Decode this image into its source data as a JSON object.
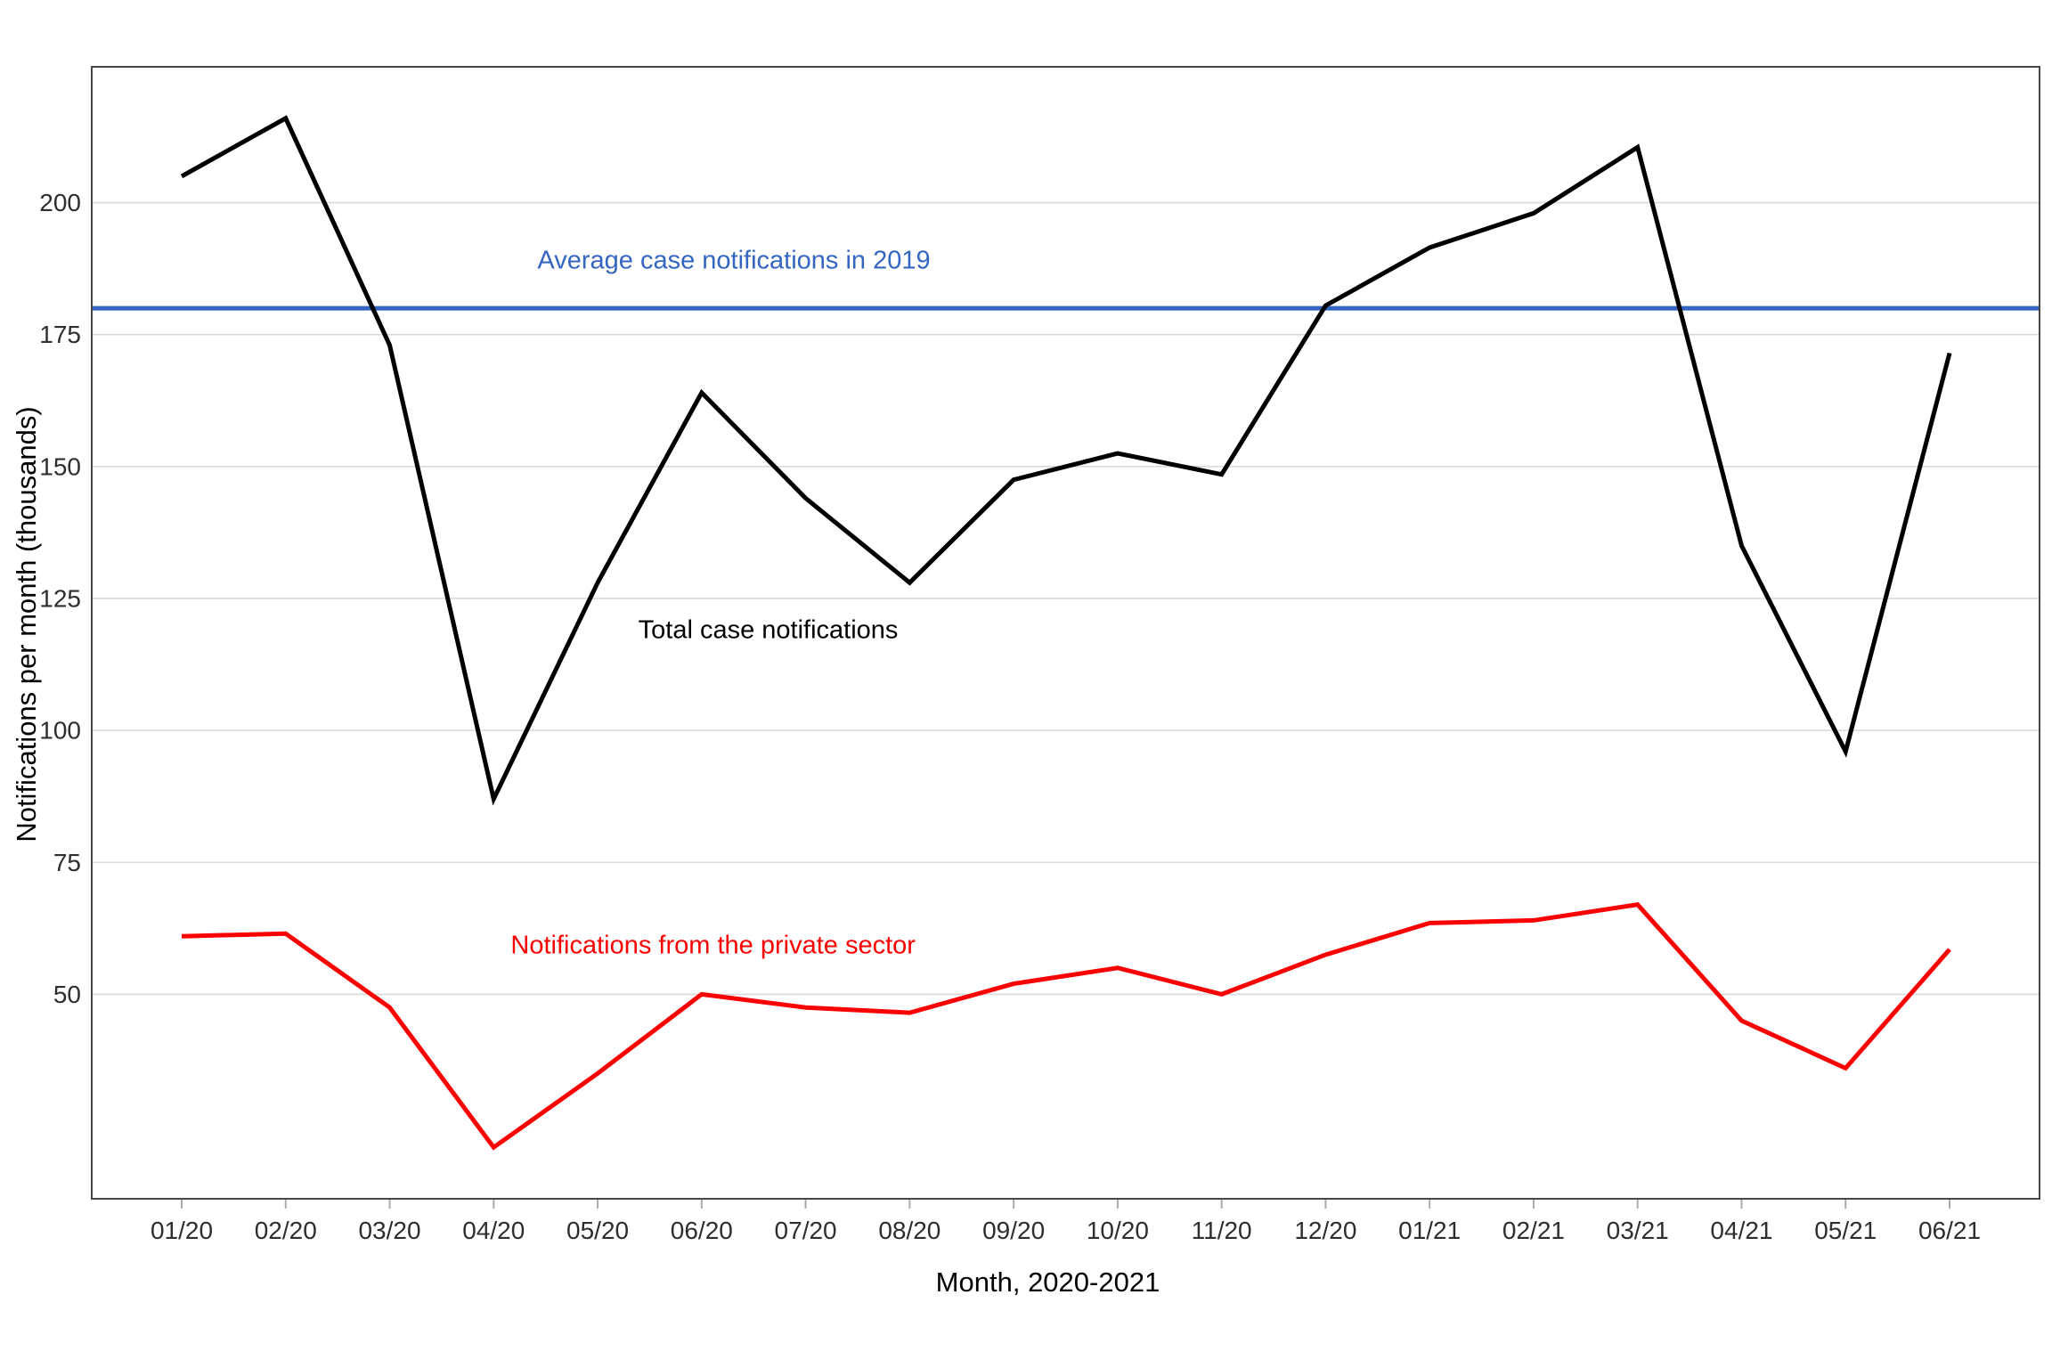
{
  "chart_data": {
    "type": "line",
    "title": "",
    "xlabel": "Month, 2020-2021",
    "ylabel": "Notifications per month (thousands)",
    "x_categories": [
      "01/20",
      "02/20",
      "03/20",
      "04/20",
      "05/20",
      "06/20",
      "07/20",
      "08/20",
      "09/20",
      "10/20",
      "11/20",
      "12/20",
      "01/21",
      "02/21",
      "03/21",
      "04/21",
      "05/21",
      "06/21"
    ],
    "yticks": [
      50,
      75,
      100,
      125,
      150,
      175,
      200
    ],
    "ylim": [
      11.25,
      225.75
    ],
    "grid": "horizontal-only",
    "legend_position": "none (direct labels on chart)",
    "colors": {
      "grid": "#d9d9d9",
      "panel_border": "#474747",
      "tick_mark": "#ababab",
      "tick_label": "#2e2e2e",
      "total_series": "#000000",
      "private_series": "#FB0000",
      "reference_line": "#3465C0"
    },
    "reference_line": {
      "label": "Average case notifications in 2019",
      "value": 180,
      "label_anchor": {
        "month": 6.31,
        "value": 189
      }
    },
    "series": [
      {
        "name": "Total case notifications",
        "color": "#000000",
        "values": [
          205,
          216,
          173,
          87,
          128,
          164,
          144,
          128,
          147.5,
          152.5,
          148.5,
          180.5,
          191.5,
          198,
          210.5,
          135,
          96,
          171.5
        ],
        "label_anchor": {
          "month": 6.64,
          "value": 119
        }
      },
      {
        "name": "Notifications from the private sector",
        "color": "#FB0000",
        "values": [
          61,
          61.5,
          47.5,
          21,
          35,
          50,
          47.5,
          46.5,
          52,
          55,
          50,
          57.5,
          63.5,
          64,
          67,
          45,
          36,
          58.5
        ],
        "label_anchor": {
          "month": 6.11,
          "value": 59.2
        }
      }
    ]
  }
}
